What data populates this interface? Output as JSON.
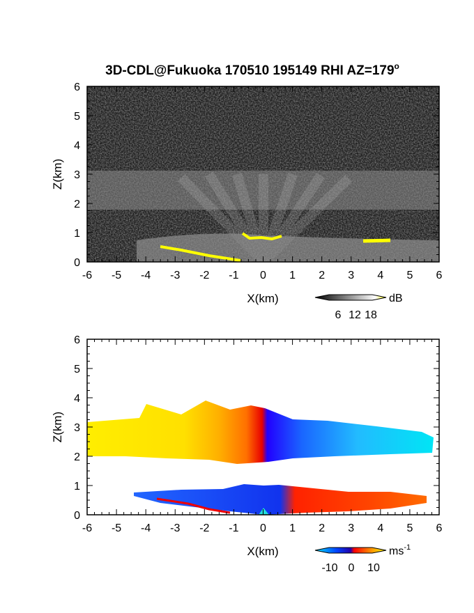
{
  "figure": {
    "title": "3D-CDL@Fukuoka 170510 195149 RHI AZ=179",
    "title_superscript": "o"
  },
  "chart_data": [
    {
      "type": "heatmap",
      "panel": "reflectivity",
      "xlabel": "X(km)",
      "ylabel": "Z(km)",
      "xlim": [
        -6,
        6
      ],
      "ylim": [
        0,
        6
      ],
      "xticks": [
        "-6",
        "-5",
        "-4",
        "-3",
        "-2",
        "-1",
        "0",
        "1",
        "2",
        "3",
        "4",
        "5",
        "6"
      ],
      "yticks": [
        "0",
        "1",
        "2",
        "3",
        "4",
        "5",
        "6"
      ],
      "features": [
        {
          "label": "layer",
          "x": [
            -6,
            6
          ],
          "z": [
            1.8,
            3.1
          ],
          "value_dB": 12
        },
        {
          "label": "lower layer",
          "x": [
            -4.5,
            1.5
          ],
          "z": [
            0,
            0.9
          ],
          "value_dB": 14
        },
        {
          "label": "strong echo",
          "x": [
            -3.5,
            -1
          ],
          "z": [
            0,
            0.5
          ],
          "value_dB": 18
        },
        {
          "label": "strong echo",
          "x": [
            -0.7,
            0.7
          ],
          "z": [
            0.7,
            1.0
          ],
          "value_dB": 18
        },
        {
          "label": "strong echo",
          "x": [
            3.4,
            4.2
          ],
          "z": [
            0.65,
            0.8
          ],
          "value_dB": 18
        }
      ],
      "colorbar": {
        "label": "dB",
        "ticks": [
          "6",
          "12",
          "18"
        ],
        "range": [
          0,
          20
        ],
        "colors": [
          "#000000",
          "#ffffff",
          "#ffff00"
        ]
      }
    },
    {
      "type": "heatmap",
      "panel": "doppler_velocity",
      "xlabel": "X(km)",
      "ylabel": "Z(km)",
      "xlim": [
        -6,
        6
      ],
      "ylim": [
        0,
        6
      ],
      "xticks": [
        "-6",
        "-5",
        "-4",
        "-3",
        "-2",
        "-1",
        "0",
        "1",
        "2",
        "3",
        "4",
        "5",
        "6"
      ],
      "yticks": [
        "0",
        "1",
        "2",
        "3",
        "4",
        "5",
        "6"
      ],
      "features": [
        {
          "label": "upper layer west",
          "x": [
            -6,
            0.2
          ],
          "z": [
            1.7,
            3.7
          ],
          "value_ms": 10
        },
        {
          "label": "upper layer east",
          "x": [
            0.2,
            5.9
          ],
          "z": [
            1.9,
            3.2
          ],
          "value_ms": -9
        },
        {
          "label": "lower layer west",
          "x": [
            -4.5,
            0.1
          ],
          "z": [
            0,
            0.9
          ],
          "value_ms": -12
        },
        {
          "label": "lower layer east",
          "x": [
            0.1,
            5.5
          ],
          "z": [
            0.2,
            0.9
          ],
          "value_ms": 3
        }
      ],
      "colorbar": {
        "label": "ms",
        "label_superscript": "-1",
        "ticks": [
          "-10",
          "0",
          "10"
        ],
        "range": [
          -15,
          15
        ],
        "colors": [
          "#00e5ff",
          "#0033ff",
          "#ff0000",
          "#ff9900",
          "#ffff00"
        ]
      }
    }
  ]
}
